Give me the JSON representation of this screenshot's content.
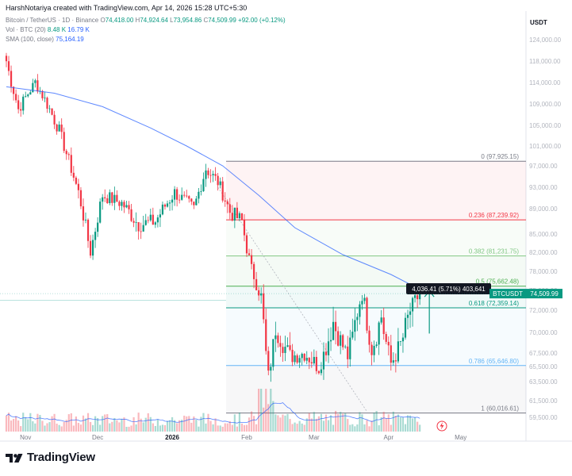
{
  "header": {
    "credit": "HarshNotariya created with TradingView.com, Apr 14, 2026 15:28 UTC+5:30",
    "symbol_line": "Bitcoin / TetherUS · 1D · Binance",
    "ohlc": {
      "o_label": "O",
      "o": "74,418.00",
      "h_label": "H",
      "h": "74,924.64",
      "l_label": "L",
      "l": "73,954.86",
      "c_label": "C",
      "c": "74,509.99",
      "change": "+92.00 (+0.12%)"
    },
    "vol_line": "Vol · BTC (20)",
    "vol_values": [
      "8.48 K",
      "16.79 K"
    ],
    "sma_line": "SMA (100, close)",
    "sma_value": "75,164.19",
    "currency": "USDT"
  },
  "chart_data": {
    "type": "candlestick",
    "symbol": "BTCUSDT",
    "last_price": "74,509.99",
    "price_axis_ticks": [
      "124,000.00",
      "118,000.00",
      "114,000.00",
      "109,000.00",
      "105,000.00",
      "101,000.00",
      "97,000.00",
      "93,000.00",
      "89,000.00",
      "85,000.00",
      "82,000.00",
      "78,000.00",
      "75,000.00",
      "72,000.00",
      "70,000.00",
      "67,500.00",
      "65,500.00",
      "63,500.00",
      "61,500.00",
      "59,500.00"
    ],
    "price_axis_values": [
      124000,
      118000,
      114000,
      109000,
      105000,
      101000,
      97000,
      93000,
      89000,
      85000,
      82000,
      78000,
      75000,
      72000,
      70000,
      67500,
      65500,
      63500,
      61500,
      59500
    ],
    "x_ticks": [
      {
        "label": "Nov",
        "day": 8,
        "bold": false
      },
      {
        "label": "Dec",
        "day": 38,
        "bold": false
      },
      {
        "label": "2026",
        "day": 69,
        "bold": true
      },
      {
        "label": "Feb",
        "day": 100,
        "bold": false
      },
      {
        "label": "Mar",
        "day": 128,
        "bold": false
      },
      {
        "label": "Apr",
        "day": 159,
        "bold": false
      },
      {
        "label": "May",
        "day": 189,
        "bold": false
      }
    ],
    "fibonacci": [
      {
        "level": "0",
        "price": 97925.15,
        "label": "0 (97,925.15)",
        "color": "#787b86"
      },
      {
        "level": "0.236",
        "price": 87239.92,
        "label": "0.236 (87,239.92)",
        "color": "#f23645"
      },
      {
        "level": "0.382",
        "price": 81231.75,
        "label": "0.382 (81,231.75)",
        "color": "#81c784"
      },
      {
        "level": "0.5",
        "price": 75662.48,
        "label": "0.5 (75,662.48)",
        "color": "#4caf50"
      },
      {
        "level": "0.618",
        "price": 72359.14,
        "label": "0.618 (72,359.14)",
        "color": "#089981"
      },
      {
        "level": "0.786",
        "price": 65646.8,
        "label": "0.786 (65,646.80)",
        "color": "#64b5f6"
      },
      {
        "level": "1",
        "price": 60016.61,
        "label": "1 (60,016.61)",
        "color": "#787b86"
      }
    ],
    "measure_label": "4,036.41 (5.71%) 403,641",
    "key_points": [
      {
        "day": 0,
        "price": 118000
      },
      {
        "day": 5,
        "price": 108000
      },
      {
        "day": 12,
        "price": 114000
      },
      {
        "day": 22,
        "price": 104000
      },
      {
        "day": 30,
        "price": 92000
      },
      {
        "day": 35,
        "price": 82000
      },
      {
        "day": 40,
        "price": 91500
      },
      {
        "day": 48,
        "price": 90000
      },
      {
        "day": 55,
        "price": 86500
      },
      {
        "day": 62,
        "price": 87000
      },
      {
        "day": 70,
        "price": 92000
      },
      {
        "day": 78,
        "price": 89000
      },
      {
        "day": 83,
        "price": 96500
      },
      {
        "day": 88,
        "price": 94000
      },
      {
        "day": 93,
        "price": 88500
      },
      {
        "day": 98,
        "price": 87000
      },
      {
        "day": 102,
        "price": 78500
      },
      {
        "day": 106,
        "price": 74000
      },
      {
        "day": 109,
        "price": 64000
      },
      {
        "day": 112,
        "price": 70500
      },
      {
        "day": 118,
        "price": 67000
      },
      {
        "day": 124,
        "price": 67500
      },
      {
        "day": 130,
        "price": 65500
      },
      {
        "day": 136,
        "price": 71000
      },
      {
        "day": 142,
        "price": 67000
      },
      {
        "day": 148,
        "price": 74500
      },
      {
        "day": 152,
        "price": 68000
      },
      {
        "day": 156,
        "price": 71500
      },
      {
        "day": 160,
        "price": 66000
      },
      {
        "day": 164,
        "price": 68500
      },
      {
        "day": 168,
        "price": 72000
      },
      {
        "day": 172,
        "price": 74510
      }
    ],
    "sma_points": [
      {
        "day": 0,
        "price": 113000
      },
      {
        "day": 20,
        "price": 111500
      },
      {
        "day": 40,
        "price": 108500
      },
      {
        "day": 60,
        "price": 104500
      },
      {
        "day": 75,
        "price": 101000
      },
      {
        "day": 90,
        "price": 97000
      },
      {
        "day": 105,
        "price": 91500
      },
      {
        "day": 120,
        "price": 86000
      },
      {
        "day": 140,
        "price": 81500
      },
      {
        "day": 160,
        "price": 77500
      },
      {
        "day": 172,
        "price": 75164
      }
    ]
  },
  "footer": {
    "brand": "TradingView"
  }
}
